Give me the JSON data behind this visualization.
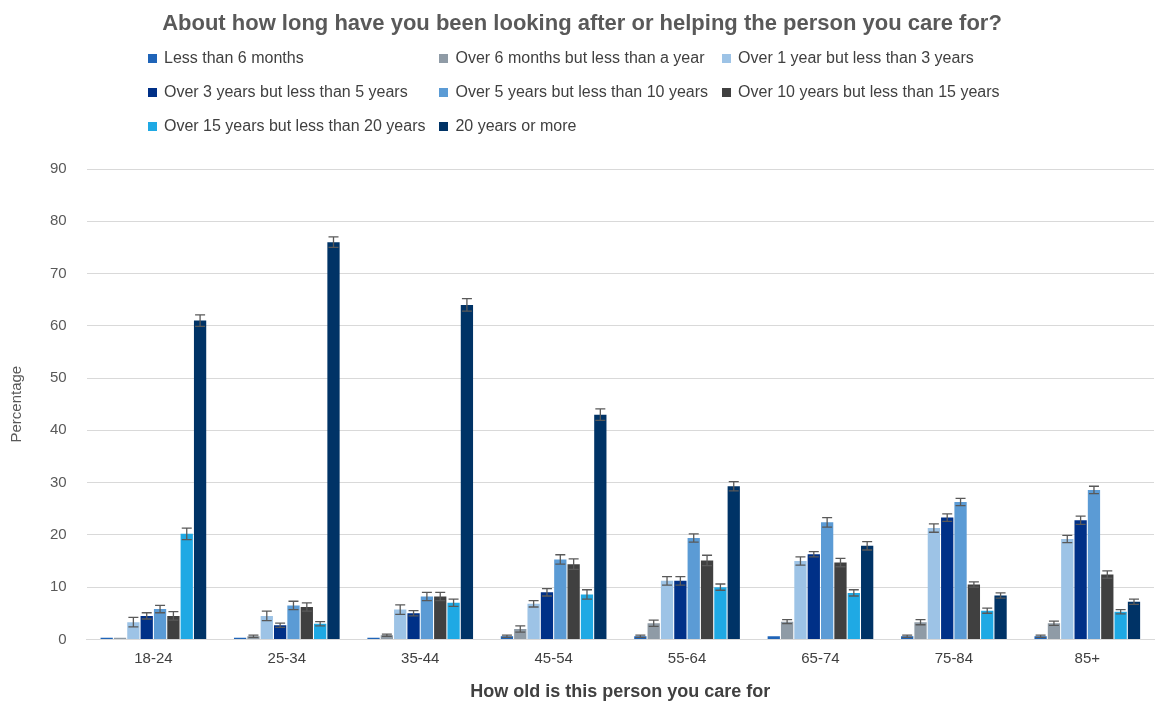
{
  "chart_data": {
    "type": "bar",
    "title": "About how long have you been looking after or helping the person you care for?",
    "xlabel": "How old is this person you care for",
    "ylabel": "Percentage",
    "categories": [
      "18-24",
      "25-34",
      "35-44",
      "45-54",
      "55-64",
      "65-74",
      "75-84",
      "85+"
    ],
    "ylim": [
      0,
      90
    ],
    "yticks": [
      0,
      10,
      20,
      30,
      40,
      50,
      60,
      70,
      80,
      90
    ],
    "grid": "y",
    "legend": "top",
    "series": [
      {
        "name": "Less than 6 months",
        "color": "#1f64b8",
        "values": [
          0.3,
          0.3,
          0.3,
          0.6,
          0.6,
          0.6,
          0.6,
          0.6
        ],
        "errors": [
          null,
          null,
          null,
          0.2,
          0.2,
          null,
          0.2,
          0.2
        ]
      },
      {
        "name": "Over 6 months but less than a year",
        "color": "#8f9ba6",
        "values": [
          0.3,
          0.6,
          0.8,
          2.0,
          3.1,
          3.4,
          3.3,
          3.1
        ],
        "errors": [
          null,
          0.2,
          0.2,
          0.6,
          0.6,
          0.4,
          0.5,
          0.4
        ]
      },
      {
        "name": "Over 1 year but less than 3 years",
        "color": "#9dc3e6",
        "values": [
          3.3,
          4.5,
          5.7,
          6.8,
          11.2,
          15.0,
          21.3,
          19.2
        ],
        "errors": [
          0.9,
          0.9,
          0.9,
          0.6,
          0.8,
          0.8,
          0.8,
          0.7
        ]
      },
      {
        "name": "Over 3 years but less than 5 years",
        "color": "#003087",
        "values": [
          4.5,
          2.7,
          5.0,
          9.0,
          11.2,
          16.3,
          23.3,
          22.8
        ],
        "errors": [
          0.6,
          0.4,
          0.5,
          0.7,
          0.8,
          0.5,
          0.7,
          0.8
        ]
      },
      {
        "name": "Over 5 years but less than 10 years",
        "color": "#5b9bd5",
        "values": [
          5.8,
          6.5,
          8.2,
          15.3,
          19.4,
          22.4,
          26.3,
          28.6
        ],
        "errors": [
          0.7,
          0.8,
          0.8,
          0.9,
          0.8,
          0.9,
          0.7,
          0.7
        ]
      },
      {
        "name": "Over 10 years but less than 15 years",
        "color": "#404040",
        "values": [
          4.5,
          6.2,
          8.2,
          14.4,
          15.1,
          14.7,
          10.5,
          12.4
        ],
        "errors": [
          0.8,
          0.8,
          0.8,
          1.0,
          1.0,
          0.8,
          0.5,
          0.7
        ]
      },
      {
        "name": "Over 15 years but less than 20 years",
        "color": "#1fa9e4",
        "values": [
          20.2,
          3.0,
          7.0,
          8.6,
          10.0,
          8.9,
          5.5,
          5.3
        ],
        "errors": [
          1.1,
          0.4,
          0.7,
          0.9,
          0.6,
          0.6,
          0.5,
          0.4
        ]
      },
      {
        "name": "20 years or more",
        "color": "#003366",
        "values": [
          61.0,
          76.0,
          64.0,
          43.0,
          29.3,
          17.9,
          8.4,
          7.2
        ],
        "errors": [
          1.1,
          1.0,
          1.2,
          1.1,
          0.9,
          0.8,
          0.5,
          0.5
        ]
      }
    ]
  }
}
